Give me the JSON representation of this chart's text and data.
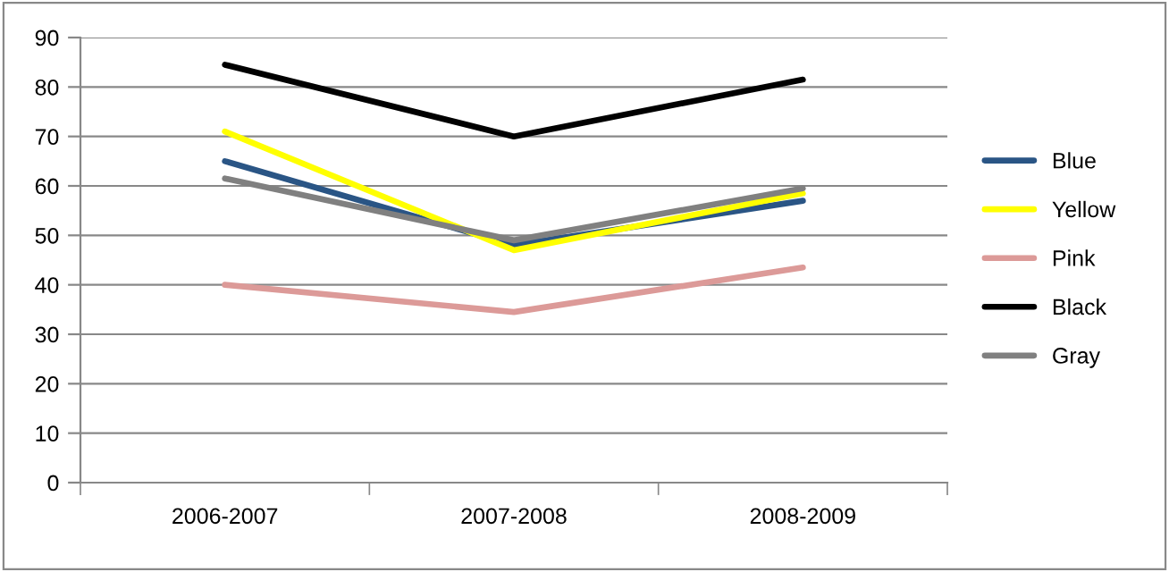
{
  "chart_data": {
    "type": "line",
    "categories": [
      "2006-2007",
      "2007-2008",
      "2008-2009"
    ],
    "series": [
      {
        "name": "Blue",
        "color": "#2a5585",
        "values": [
          65,
          48,
          57
        ]
      },
      {
        "name": "Yellow",
        "color": "#ffff00",
        "values": [
          71,
          47,
          58.5
        ]
      },
      {
        "name": "Pink",
        "color": "#dc9a98",
        "values": [
          40,
          34.5,
          43.5
        ]
      },
      {
        "name": "Black",
        "color": "#000000",
        "values": [
          84.5,
          70,
          81.5
        ]
      },
      {
        "name": "Gray",
        "color": "#808080",
        "values": [
          61.5,
          49,
          59.5
        ]
      }
    ],
    "ylim": [
      0,
      90
    ],
    "yticks": [
      0,
      10,
      20,
      30,
      40,
      50,
      60,
      70,
      80,
      90
    ],
    "grid": "y",
    "legend": "right",
    "marker": "none",
    "line_style": "solid"
  }
}
